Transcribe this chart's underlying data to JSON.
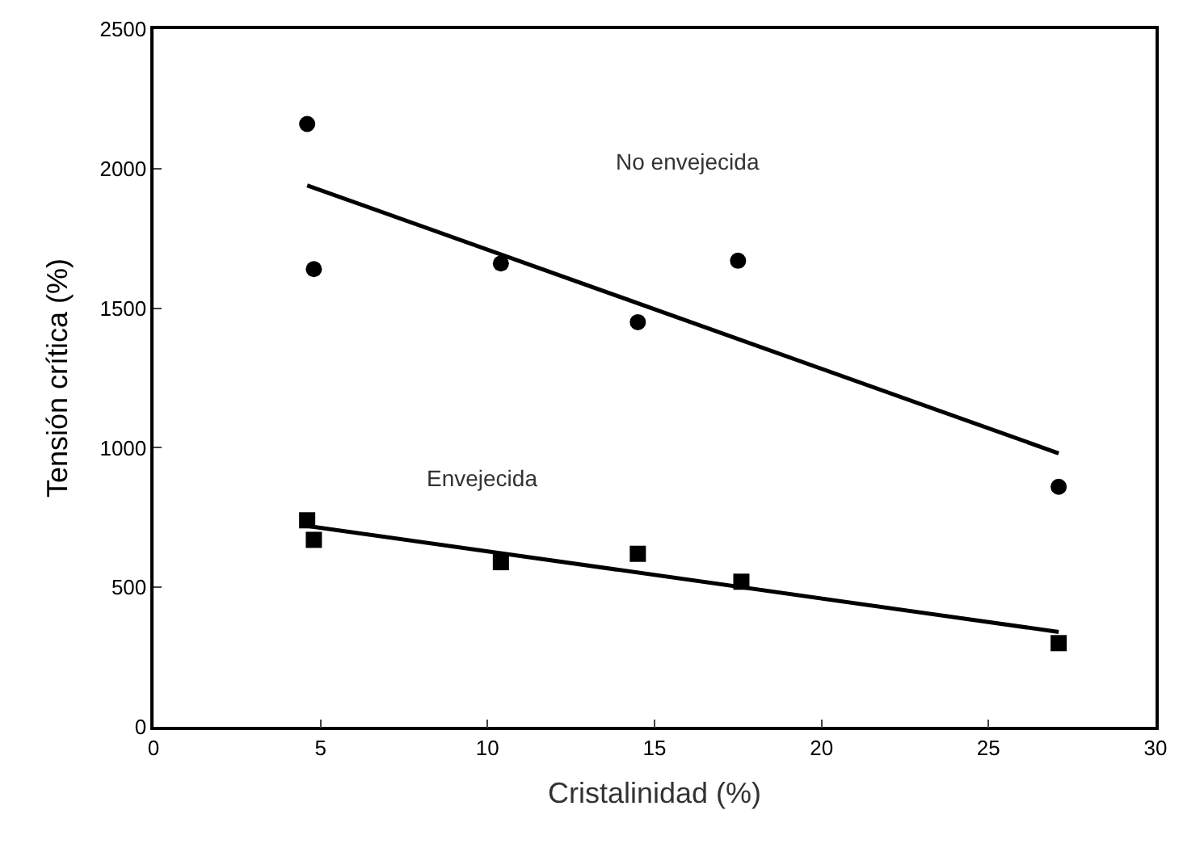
{
  "chart_data": {
    "type": "scatter",
    "xlabel": "Cristalinidad (%)",
    "ylabel": "Tensión crítica (%)",
    "xlim": [
      0,
      30
    ],
    "xticks": [
      0,
      5,
      10,
      15,
      20,
      25,
      30
    ],
    "ylim": [
      0,
      2500
    ],
    "yticks": [
      0,
      500,
      1000,
      1500,
      2000,
      2500
    ],
    "series": [
      {
        "marker": "circle",
        "color": "#000000",
        "x": [
          4.6,
          4.8,
          10.4,
          14.5,
          17.5,
          27.1
        ],
        "values": [
          2160,
          1640,
          1660,
          1450,
          1670,
          860
        ]
      },
      {
        "marker": "square",
        "color": "#000000",
        "x": [
          4.6,
          4.8,
          10.4,
          14.5,
          17.6,
          27.1
        ],
        "values": [
          740,
          670,
          590,
          620,
          520,
          300
        ]
      },
      {
        "type": "line",
        "color": "#000000",
        "x": [
          4.6,
          27.1
        ],
        "values": [
          1940,
          980
        ]
      },
      {
        "type": "line",
        "color": "#000000",
        "x": [
          4.6,
          27.1
        ],
        "values": [
          720,
          340
        ]
      }
    ],
    "annotations": [
      "No envejecida",
      "Envejecida"
    ]
  }
}
